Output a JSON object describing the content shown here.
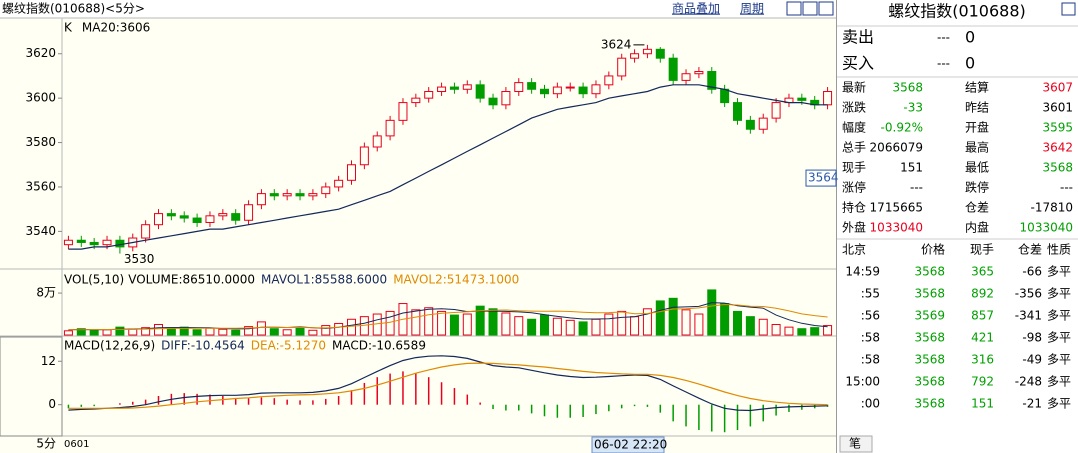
{
  "header": {
    "title": "螺纹指数(010688)<5分>",
    "menu": [
      "商品叠加",
      "周期"
    ]
  },
  "chart_data": [
    {
      "type": "candlestick",
      "label": "K",
      "open": [
        3534,
        3536,
        3535,
        3534,
        3536,
        3533,
        3537,
        3543,
        3548,
        3547,
        3546,
        3544,
        3547,
        3548,
        3545,
        3552,
        3557,
        3556,
        3557,
        3556,
        3557,
        3560,
        3563,
        3570,
        3578,
        3583,
        3590,
        3598,
        3600,
        3603,
        3605,
        3604,
        3606,
        3600,
        3597,
        3603,
        3607,
        3604,
        3602,
        3605,
        3605,
        3602,
        3606,
        3610,
        3618,
        3620,
        3622,
        3618,
        3608,
        3611,
        3612,
        3604,
        3598,
        3590,
        3586,
        3591,
        3598,
        3600,
        3599,
        3597
      ],
      "high": [
        3538,
        3538,
        3537,
        3538,
        3538,
        3539,
        3545,
        3550,
        3550,
        3549,
        3548,
        3549,
        3550,
        3550,
        3554,
        3559,
        3559,
        3559,
        3559,
        3559,
        3562,
        3565,
        3572,
        3580,
        3585,
        3592,
        3600,
        3602,
        3605,
        3607,
        3607,
        3608,
        3608,
        3602,
        3605,
        3609,
        3609,
        3606,
        3607,
        3607,
        3607,
        3608,
        3612,
        3620,
        3622,
        3624,
        3623,
        3620,
        3613,
        3614,
        3614,
        3606,
        3600,
        3592,
        3593,
        3600,
        3602,
        3602,
        3601,
        3605
      ],
      "low": [
        3532,
        3533,
        3532,
        3532,
        3530,
        3531,
        3535,
        3541,
        3545,
        3544,
        3542,
        3542,
        3545,
        3543,
        3543,
        3550,
        3554,
        3554,
        3554,
        3554,
        3555,
        3558,
        3561,
        3568,
        3576,
        3581,
        3588,
        3596,
        3598,
        3601,
        3602,
        3602,
        3598,
        3595,
        3595,
        3601,
        3602,
        3600,
        3600,
        3603,
        3600,
        3600,
        3604,
        3608,
        3616,
        3618,
        3616,
        3606,
        3606,
        3609,
        3602,
        3596,
        3588,
        3584,
        3584,
        3589,
        3596,
        3597,
        3595,
        3595
      ],
      "close": [
        3536,
        3535,
        3534,
        3536,
        3533,
        3537,
        3543,
        3548,
        3547,
        3546,
        3544,
        3547,
        3548,
        3545,
        3552,
        3557,
        3556,
        3557,
        3556,
        3557,
        3560,
        3563,
        3570,
        3578,
        3583,
        3590,
        3598,
        3600,
        3603,
        3605,
        3604,
        3606,
        3600,
        3597,
        3603,
        3607,
        3604,
        3602,
        3605,
        3605,
        3602,
        3606,
        3610,
        3618,
        3620,
        3622,
        3618,
        3608,
        3611,
        3612,
        3604,
        3598,
        3590,
        3586,
        3591,
        3598,
        3600,
        3599,
        3597,
        3603
      ],
      "series": [
        {
          "name": "MA20:3606",
          "color": "#14285a",
          "values": [
            3532,
            3532,
            3533,
            3533,
            3534,
            3535,
            3536,
            3537,
            3538,
            3539,
            3540,
            3541,
            3541,
            3542,
            3543,
            3544,
            3545,
            3546,
            3547,
            3548,
            3549,
            3550,
            3552,
            3554,
            3556,
            3558,
            3561,
            3564,
            3567,
            3570,
            3573,
            3576,
            3579,
            3582,
            3585,
            3588,
            3591,
            3593,
            3595,
            3596,
            3597,
            3598,
            3600,
            3601,
            3602,
            3603,
            3605,
            3606,
            3606,
            3606,
            3605,
            3604,
            3602,
            3601,
            3600,
            3599,
            3598,
            3598,
            3597,
            3597
          ]
        }
      ],
      "up_color": "#e8001c",
      "down_color": "#009c00",
      "ylim": [
        3523.5,
        3635.2
      ],
      "yticks": [
        3540,
        3560,
        3580,
        3600,
        3620
      ],
      "high_label": 3624,
      "low_label": 3530,
      "crosshair_label": 3564,
      "x_labels": [
        "0601"
      ],
      "cursor_label": "06-02 22:20",
      "period_label": "5分"
    },
    {
      "type": "volume",
      "title": "VOL(5,10)",
      "series": [
        {
          "name": "VOLUME:86510.0000",
          "color": "#000000",
          "values": [
            8000,
            12000,
            9000,
            10000,
            15000,
            11000,
            14000,
            20000,
            12000,
            15000,
            10000,
            13000,
            11000,
            9000,
            16000,
            25000,
            12000,
            10000,
            14000,
            9000,
            18000,
            22000,
            30000,
            35000,
            40000,
            45000,
            60000,
            48000,
            52000,
            45000,
            38000,
            40000,
            55000,
            50000,
            42000,
            35000,
            30000,
            38000,
            32000,
            28000,
            25000,
            30000,
            40000,
            45000,
            35000,
            50000,
            65000,
            70000,
            48000,
            40000,
            86000,
            60000,
            45000,
            35000,
            30000,
            20000,
            15000,
            12000,
            14000,
            18000
          ]
        },
        {
          "name": "MAVOL1:85588.6000",
          "color": "#14285a",
          "values": [
            10000,
            10500,
            10200,
            10300,
            10800,
            11400,
            11800,
            14000,
            14400,
            14400,
            14200,
            14000,
            12200,
            11600,
            11800,
            14800,
            14600,
            14400,
            15400,
            14000,
            12600,
            14600,
            18600,
            22600,
            29000,
            34400,
            42000,
            45600,
            49000,
            50000,
            48600,
            44600,
            45800,
            45600,
            45000,
            44000,
            42400,
            39000,
            35400,
            32600,
            30600,
            30600,
            31000,
            33600,
            35000,
            40000,
            47000,
            53000,
            53600,
            54600,
            61800,
            60800,
            55800,
            53200,
            51200,
            38000,
            29000,
            22400,
            18200,
            15800
          ]
        },
        {
          "name": "MAVOL2:51473.1000",
          "color": "#e08a00",
          "values": [
            10000,
            10200,
            10300,
            10400,
            10600,
            10900,
            11200,
            12000,
            12500,
            12600,
            12800,
            13000,
            13000,
            13000,
            13300,
            14400,
            14600,
            14400,
            14500,
            13900,
            13600,
            14600,
            16600,
            18500,
            21400,
            24500,
            30100,
            34100,
            38600,
            41400,
            43000,
            44500,
            46400,
            47400,
            47700,
            46300,
            45600,
            45300,
            45500,
            44800,
            43500,
            42400,
            42800,
            43800,
            40400,
            41000,
            44700,
            49600,
            50000,
            51700,
            55300,
            58100,
            57300,
            54800,
            54300,
            51000,
            46000,
            40200,
            37100,
            34400
          ]
        }
      ],
      "ylim": [
        0,
        124000
      ],
      "yticks": [
        {
          "value": 80000,
          "label": "8万"
        }
      ]
    },
    {
      "type": "macd",
      "title": "MACD(12,26,9)",
      "series": [
        {
          "name": "DIFF:-10.4564",
          "color": "#14285a",
          "values": [
            -1.5,
            -1.3,
            -1.2,
            -1.0,
            -0.8,
            -0.5,
            0,
            0.8,
            1.5,
            2.0,
            2.3,
            2.5,
            2.6,
            2.6,
            2.8,
            3.2,
            3.3,
            3.3,
            3.3,
            3.4,
            3.8,
            4.5,
            5.8,
            7.5,
            9.2,
            10.8,
            12.2,
            13.0,
            13.4,
            13.5,
            13.3,
            12.8,
            11.8,
            10.8,
            10.4,
            10.2,
            9.5,
            8.8,
            8.2,
            7.8,
            7.5,
            7.6,
            7.8,
            8.0,
            8.2,
            8.1,
            7.0,
            5.2,
            3.5,
            1.8,
            0.2,
            -1.0,
            -1.5,
            -1.6,
            -1.2,
            -0.8,
            -0.6,
            -0.5,
            -0.4,
            -0.3
          ]
        },
        {
          "name": "DEA:-5.1270",
          "color": "#e08a00",
          "values": [
            -1.0,
            -1.0,
            -1.0,
            -1.0,
            -1.0,
            -0.9,
            -0.7,
            -0.4,
            0,
            0.4,
            0.8,
            1.1,
            1.4,
            1.7,
            1.9,
            2.2,
            2.4,
            2.6,
            2.7,
            2.8,
            3.0,
            3.3,
            3.8,
            4.5,
            5.4,
            6.5,
            7.6,
            8.7,
            9.6,
            10.4,
            11.0,
            11.4,
            11.5,
            11.4,
            11.2,
            11.0,
            10.7,
            10.4,
            10.0,
            9.6,
            9.2,
            8.9,
            8.7,
            8.5,
            8.4,
            8.4,
            8.1,
            7.5,
            6.7,
            5.7,
            4.6,
            3.5,
            2.5,
            1.7,
            1.1,
            0.7,
            0.4,
            0.2,
            0.1,
            0.0
          ]
        },
        {
          "name": "MACD:-10.6589",
          "color": "#000000",
          "values": [
            -1.0,
            -0.6,
            -0.4,
            0,
            0.4,
            0.8,
            1.4,
            2.4,
            3.0,
            3.2,
            3.0,
            2.8,
            2.4,
            1.8,
            1.8,
            2.0,
            1.8,
            1.4,
            1.2,
            1.2,
            1.6,
            2.4,
            4.0,
            6.0,
            7.6,
            8.6,
            9.2,
            8.6,
            7.6,
            6.2,
            4.6,
            2.8,
            0.6,
            -1.2,
            -1.6,
            -1.6,
            -2.4,
            -3.2,
            -3.6,
            -3.6,
            -3.4,
            -2.6,
            -1.8,
            -1.0,
            -0.4,
            -0.6,
            -2.2,
            -4.6,
            -6.0,
            -7.0,
            -7.4,
            -7.6,
            -7.0,
            -6.0,
            -4.6,
            -3.0,
            -2.0,
            -1.4,
            -1.0,
            -0.6
          ]
        }
      ],
      "ylim": [
        -8.37,
        18.7
      ],
      "yticks": [
        0,
        12
      ]
    }
  ],
  "quote": {
    "title": "螺纹指数(010688)",
    "book": [
      [
        "卖出",
        "---",
        "0"
      ],
      [
        "买入",
        "---",
        "0"
      ]
    ],
    "stats": [
      [
        "最新",
        "3568",
        "结算",
        "3607"
      ],
      [
        "涨跌",
        "-33",
        "昨结",
        "3601"
      ],
      [
        "幅度",
        "-0.92%",
        "开盘",
        "3595"
      ],
      [
        "总手",
        "2066079",
        "最高",
        "3642"
      ],
      [
        "现手",
        "151",
        "最低",
        "3568"
      ],
      [
        "涨停",
        "---",
        "跌停",
        "---"
      ],
      [
        "持仓",
        "1715665",
        "仓差",
        "-17810"
      ],
      [
        "外盘",
        "1033040",
        "内盘",
        "1033040"
      ]
    ],
    "trades_header": [
      "北京",
      "价格",
      "现手",
      "仓差",
      "性质"
    ],
    "trades": [
      [
        "14:59",
        "3568",
        "365",
        "-66",
        "多平"
      ],
      [
        ":55",
        "3568",
        "892",
        "-356",
        "多平"
      ],
      [
        ":56",
        "3569",
        "857",
        "-341",
        "多平"
      ],
      [
        ":58",
        "3568",
        "421",
        "-98",
        "多平"
      ],
      [
        ":58",
        "3568",
        "316",
        "-49",
        "多平"
      ],
      [
        "15:00",
        "3568",
        "792",
        "-248",
        "多平"
      ],
      [
        ":00",
        "3568",
        "151",
        "-21",
        "多平"
      ]
    ],
    "tab": "笔"
  }
}
